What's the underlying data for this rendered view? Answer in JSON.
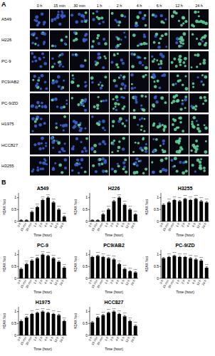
{
  "panel_a": {
    "label": "A",
    "time_points": [
      "0 h",
      "15 min",
      "30 min",
      "1 h",
      "2 h",
      "4 h",
      "6 h",
      "12 h",
      "24 h"
    ],
    "cell_lines": [
      "A549",
      "H226",
      "PC-9",
      "PC9/AB2",
      "PC-9/ZD",
      "H1975",
      "HCC827",
      "H3255"
    ]
  },
  "panel_b_label": "B",
  "chart_data": [
    {
      "type": "bar",
      "title": "A549",
      "categories": [
        "0 h",
        "15 min",
        "30 min",
        "1 h",
        "2 h",
        "4 h",
        "6 h",
        "12 h",
        "24 h"
      ],
      "values": [
        0.05,
        0.05,
        0.4,
        0.6,
        0.9,
        1.0,
        0.8,
        0.5,
        0.2
      ],
      "errors": [
        0.02,
        0.02,
        0.04,
        0.04,
        0.04,
        0.03,
        0.04,
        0.04,
        0.03
      ],
      "significance": [
        null,
        null,
        "***",
        "***",
        "***",
        "***",
        "***",
        "***",
        "***"
      ],
      "ylim": [
        0,
        1.2
      ],
      "yticks": [
        0,
        0.5,
        1
      ],
      "y_label": "H2AX foci",
      "x_label": "Time (hour)",
      "color": "#000000"
    },
    {
      "type": "bar",
      "title": "H226",
      "categories": [
        "0 h",
        "15 min",
        "30 min",
        "1 h",
        "2 h",
        "4 h",
        "6 h",
        "12 h",
        "24 h"
      ],
      "values": [
        0.05,
        0.05,
        0.3,
        0.5,
        0.85,
        1.0,
        0.7,
        0.5,
        0.3
      ],
      "errors": [
        0.02,
        0.02,
        0.04,
        0.04,
        0.04,
        0.03,
        0.04,
        0.04,
        0.03
      ],
      "significance": [
        null,
        null,
        "***",
        "***",
        "***",
        "***",
        "***",
        "***",
        "***"
      ],
      "ylim": [
        0,
        1.2
      ],
      "yticks": [
        0,
        0.5,
        1
      ],
      "y_label": "H2AX foci",
      "x_label": "Time (hour)",
      "color": "#000000"
    },
    {
      "type": "bar",
      "title": "H3255",
      "categories": [
        "0 h",
        "15 min",
        "30 min",
        "1 h",
        "2 h",
        "4 h",
        "6 h",
        "12 h",
        "24 h"
      ],
      "values": [
        0.7,
        0.8,
        0.9,
        0.85,
        0.95,
        0.9,
        0.95,
        0.85,
        0.8
      ],
      "errors": [
        0.04,
        0.04,
        0.03,
        0.04,
        0.03,
        0.03,
        0.03,
        0.04,
        0.04
      ],
      "significance": [
        null,
        "***",
        "***",
        "***",
        "***",
        "***",
        "***",
        "***",
        "***"
      ],
      "ylim": [
        0,
        1.2
      ],
      "yticks": [
        0,
        0.5,
        1
      ],
      "y_label": "H2AX foci",
      "x_label": "Time (hour)",
      "color": "#000000"
    },
    {
      "type": "bar",
      "title": "PC-9",
      "categories": [
        "0 h",
        "15 min",
        "30 min",
        "1 h",
        "2 h",
        "4 h",
        "6 h",
        "12 h",
        "24 h"
      ],
      "values": [
        0.4,
        0.6,
        0.75,
        0.85,
        1.0,
        0.95,
        0.85,
        0.7,
        0.45
      ],
      "errors": [
        0.04,
        0.04,
        0.04,
        0.03,
        0.03,
        0.03,
        0.03,
        0.04,
        0.04
      ],
      "significance": [
        null,
        "***",
        "***",
        "***",
        "***",
        "***",
        "***",
        "***",
        "***"
      ],
      "ylim": [
        0,
        1.2
      ],
      "yticks": [
        0,
        0.5,
        1
      ],
      "y_label": "H2AX foci",
      "x_label": "Time (hour)",
      "color": "#000000"
    },
    {
      "type": "bar",
      "title": "PC9/AB2",
      "categories": [
        "0 h",
        "15 min",
        "30 min",
        "1 h",
        "2 h",
        "4 h",
        "6 h",
        "12 h",
        "24 h"
      ],
      "values": [
        0.9,
        0.95,
        0.9,
        0.85,
        0.8,
        0.6,
        0.4,
        0.3,
        0.25
      ],
      "errors": [
        0.03,
        0.03,
        0.03,
        0.03,
        0.04,
        0.04,
        0.04,
        0.03,
        0.03
      ],
      "significance": [
        null,
        "***",
        "***",
        "***",
        "***",
        "***",
        "***",
        "***",
        "***"
      ],
      "ylim": [
        0,
        1.2
      ],
      "yticks": [
        0,
        0.5,
        1
      ],
      "y_label": "H2AX foci",
      "x_label": "Time (hour)",
      "color": "#000000"
    },
    {
      "type": "bar",
      "title": "PC-9/ZD",
      "categories": [
        "0 h",
        "15 min",
        "30 min",
        "1 h",
        "2 h",
        "4 h",
        "6 h",
        "12 h",
        "24 h"
      ],
      "values": [
        0.85,
        0.9,
        0.95,
        0.9,
        0.9,
        0.85,
        0.8,
        0.75,
        0.45
      ],
      "errors": [
        0.03,
        0.03,
        0.03,
        0.03,
        0.03,
        0.03,
        0.04,
        0.04,
        0.04
      ],
      "significance": [
        null,
        "***",
        "***",
        "***",
        "***",
        "***",
        "***",
        "***",
        "***"
      ],
      "ylim": [
        0,
        1.2
      ],
      "yticks": [
        0,
        0.5,
        1
      ],
      "y_label": "H2AX foci",
      "x_label": "Time (hour)",
      "color": "#000000"
    },
    {
      "type": "bar",
      "title": "H1975",
      "categories": [
        "0 h",
        "15 min",
        "30 min",
        "1 h",
        "2 h",
        "4 h",
        "6 h",
        "12 h",
        "24 h"
      ],
      "values": [
        0.6,
        0.75,
        0.9,
        0.95,
        1.0,
        0.95,
        0.9,
        0.85,
        0.6
      ],
      "errors": [
        0.04,
        0.04,
        0.03,
        0.03,
        0.03,
        0.03,
        0.03,
        0.04,
        0.04
      ],
      "significance": [
        null,
        "***",
        "***",
        "***",
        "***",
        "***",
        "***",
        "***",
        "***"
      ],
      "ylim": [
        0,
        1.2
      ],
      "yticks": [
        0,
        0.5,
        1
      ],
      "y_label": "H2AX foci",
      "x_label": "Time (hour)",
      "color": "#000000"
    },
    {
      "type": "bar",
      "title": "HCC827",
      "categories": [
        "0 h",
        "15 min",
        "30 min",
        "1 h",
        "2 h",
        "4 h",
        "6 h",
        "12 h",
        "24 h"
      ],
      "values": [
        0.55,
        0.75,
        0.85,
        0.95,
        1.0,
        0.9,
        0.8,
        0.6,
        0.4
      ],
      "errors": [
        0.04,
        0.04,
        0.03,
        0.03,
        0.03,
        0.03,
        0.04,
        0.04,
        0.04
      ],
      "significance": [
        null,
        "***",
        "***",
        "***",
        "***",
        "***",
        "***",
        "***",
        "***"
      ],
      "ylim": [
        0,
        1.2
      ],
      "yticks": [
        0,
        0.5,
        1
      ],
      "y_label": "H2AX foci",
      "x_label": "Time (hour)",
      "color": "#000000"
    }
  ]
}
